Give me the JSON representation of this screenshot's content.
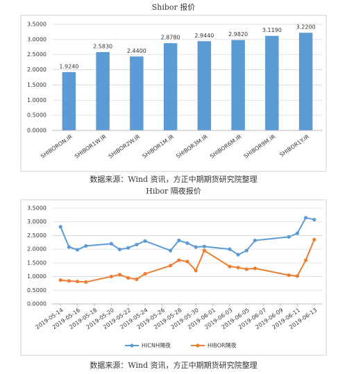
{
  "chart_data": [
    {
      "type": "bar",
      "title": "Shibor 报价",
      "categories": [
        "SHIBORON.IR",
        "SHIBOR1W.IR",
        "SHIBOR2W.IR",
        "SHIBOR1M.IR",
        "SHIBOR3M.IR",
        "SHIBOR6M.IR",
        "SHIBOR9M.IR",
        "SHIBOR1Y.IR"
      ],
      "values": [
        1.924,
        2.583,
        2.44,
        2.878,
        2.944,
        2.982,
        3.119,
        3.22
      ],
      "value_labels": [
        "1.9240",
        "2.5830",
        "2.4400",
        "2.8780",
        "2.9440",
        "2.9820",
        "3.1190",
        "3.2200"
      ],
      "color": "#5b9bd5",
      "ylim": [
        0,
        3.5
      ],
      "yticks": [
        {
          "value": 0,
          "label": "0.0000"
        },
        {
          "value": 0.5,
          "label": "0.5000"
        },
        {
          "value": 1,
          "label": "1.0000"
        },
        {
          "value": 1.5,
          "label": "1.5000"
        },
        {
          "value": 2,
          "label": "2.0000"
        },
        {
          "value": 2.5,
          "label": "2.5000"
        },
        {
          "value": 3,
          "label": "3.0000"
        },
        {
          "value": 3.5,
          "label": "3.5000"
        }
      ],
      "grid": true,
      "source": "数据来源：Wind 资讯，方正中期期货研究院整理"
    },
    {
      "type": "line",
      "title": "Hibor 隔夜报价",
      "x": [
        "2019-05-14",
        "2019-05-15",
        "2019-05-16",
        "2019-05-17",
        "2019-05-20",
        "2019-05-21",
        "2019-05-22",
        "2019-05-23",
        "2019-05-24",
        "2019-05-27",
        "2019-05-28",
        "2019-05-29",
        "2019-05-30",
        "2019-05-31",
        "2019-06-03",
        "2019-06-04",
        "2019-06-05",
        "2019-06-06",
        "2019-06-10",
        "2019-06-11",
        "2019-06-12",
        "2019-06-13"
      ],
      "series": [
        {
          "name": "HICNH隔夜",
          "color": "#5b9bd5",
          "values": [
            2.82,
            2.08,
            1.98,
            2.12,
            2.2,
            1.99,
            2.05,
            2.17,
            2.3,
            1.95,
            2.32,
            2.22,
            2.08,
            2.1,
            2.0,
            1.8,
            1.95,
            2.32,
            2.45,
            2.58,
            3.15,
            3.08
          ]
        },
        {
          "name": "HIBOR隔夜",
          "color": "#ed7d31",
          "values": [
            0.87,
            0.84,
            0.82,
            0.8,
            1.0,
            1.07,
            0.95,
            0.9,
            1.1,
            1.4,
            1.6,
            1.55,
            1.22,
            1.95,
            1.37,
            1.33,
            1.27,
            1.3,
            1.05,
            1.02,
            1.6,
            2.35
          ]
        }
      ],
      "xlim": [
        "2019-05-13",
        "2019-06-14"
      ],
      "xticks": [
        "2019-05-14",
        "2019-05-16",
        "2019-05-18",
        "2019-05-20",
        "2019-05-22",
        "2019-05-24",
        "2019-05-26",
        "2019-05-28",
        "2019-05-30",
        "2019-06-01",
        "2019-06-03",
        "2019-06-05",
        "2019-06-07",
        "2019-06-09",
        "2019-06-11",
        "2019-06-13"
      ],
      "ylim": [
        0,
        3.5
      ],
      "yticks": [
        {
          "value": 0,
          "label": "0.0000"
        },
        {
          "value": 0.5,
          "label": "0.5000"
        },
        {
          "value": 1,
          "label": "1.0000"
        },
        {
          "value": 1.5,
          "label": "1.5000"
        },
        {
          "value": 2,
          "label": "2.0000"
        },
        {
          "value": 2.5,
          "label": "2.5000"
        },
        {
          "value": 3,
          "label": "3.0000"
        },
        {
          "value": 3.5,
          "label": "3.5000"
        }
      ],
      "grid": true,
      "legend": "bottom",
      "source": "数据来源：Wind 资讯，方正中期期货研究院整理"
    }
  ]
}
